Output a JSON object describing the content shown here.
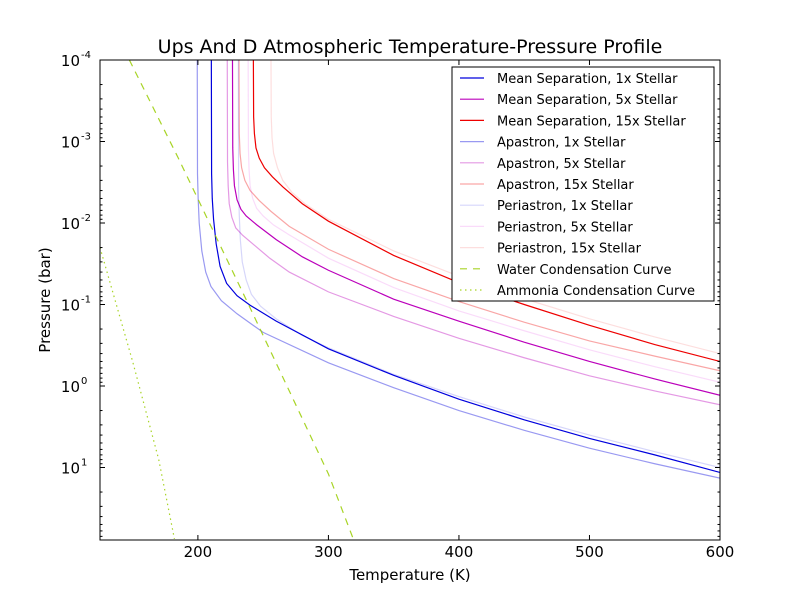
{
  "chart_data": {
    "type": "line",
    "title": "Ups And D Atmospheric Temperature-Pressure Profile",
    "xlabel": "Temperature (K)",
    "ylabel": "Pressure (bar)",
    "xlim": [
      125,
      600
    ],
    "ylim": [
      0.0001,
      75
    ],
    "yscale": "log",
    "y_inverted": true,
    "grid": false,
    "legend_position": "top-right",
    "x_ticks": [
      {
        "value": 200,
        "label": "200"
      },
      {
        "value": 300,
        "label": "300"
      },
      {
        "value": 400,
        "label": "400"
      },
      {
        "value": 500,
        "label": "500"
      },
      {
        "value": 600,
        "label": "600"
      }
    ],
    "y_ticks": [
      {
        "value": 0.0001,
        "base": "10",
        "exp": "-4"
      },
      {
        "value": 0.001,
        "base": "10",
        "exp": "-3"
      },
      {
        "value": 0.01,
        "base": "10",
        "exp": "-2"
      },
      {
        "value": 0.1,
        "base": "10",
        "exp": "-1"
      },
      {
        "value": 1,
        "base": "10",
        "exp": "0"
      },
      {
        "value": 10,
        "base": "10",
        "exp": "1"
      }
    ],
    "series": [
      {
        "name": "Mean Separation, 1x Stellar",
        "color": "#0000dd",
        "opacity": 1.0,
        "dash": "solid",
        "x": [
          210.3,
          210.5,
          211,
          212,
          214,
          217,
          222,
          230,
          240,
          260,
          300,
          350,
          400,
          450,
          500,
          550,
          600
        ],
        "y": [
          0.0001,
          0.0025,
          0.005,
          0.009,
          0.018,
          0.034,
          0.055,
          0.078,
          0.102,
          0.16,
          0.35,
          0.74,
          1.45,
          2.6,
          4.4,
          7.0,
          11.5
        ]
      },
      {
        "name": "Mean Separation, 5x Stellar",
        "color": "#bb00bb",
        "opacity": 1.0,
        "dash": "solid",
        "x": [
          226.5,
          226.7,
          227.2,
          228,
          230,
          233,
          237,
          245,
          260,
          280,
          300,
          350,
          400,
          450,
          500,
          550,
          600
        ],
        "y": [
          0.0001,
          0.0012,
          0.0022,
          0.0035,
          0.0052,
          0.0068,
          0.0082,
          0.0105,
          0.016,
          0.026,
          0.038,
          0.086,
          0.16,
          0.29,
          0.5,
          0.82,
          1.3
        ]
      },
      {
        "name": "Mean Separation, 15x Stellar",
        "color": "#ee0000",
        "opacity": 1.0,
        "dash": "solid",
        "x": [
          242.5,
          242.7,
          243.3,
          244.5,
          247,
          251,
          257,
          265,
          280,
          300,
          350,
          400,
          450,
          500,
          550,
          600
        ],
        "y": [
          0.0001,
          0.0005,
          0.0008,
          0.0012,
          0.0016,
          0.0021,
          0.0027,
          0.0036,
          0.0058,
          0.0095,
          0.025,
          0.054,
          0.1,
          0.18,
          0.31,
          0.5
        ]
      },
      {
        "name": "Apastron, 1x Stellar",
        "color": "#0000dd",
        "opacity": 0.4,
        "dash": "solid",
        "x": [
          199.5,
          199.7,
          200.2,
          201,
          203,
          206,
          210,
          218,
          230,
          250,
          300,
          350,
          400,
          450,
          500,
          550,
          600
        ],
        "y": [
          0.0001,
          0.0025,
          0.005,
          0.01,
          0.022,
          0.04,
          0.06,
          0.09,
          0.13,
          0.22,
          0.52,
          1.05,
          2.0,
          3.5,
          5.8,
          9.0,
          13.5
        ]
      },
      {
        "name": "Apastron, 5x Stellar",
        "color": "#bb00bb",
        "opacity": 0.4,
        "dash": "solid",
        "x": [
          222.5,
          222.7,
          223.2,
          224,
          226,
          229,
          234,
          242,
          255,
          270,
          300,
          350,
          400,
          450,
          500,
          550,
          600
        ],
        "y": [
          0.0001,
          0.0018,
          0.0035,
          0.0058,
          0.0085,
          0.0115,
          0.014,
          0.018,
          0.027,
          0.04,
          0.07,
          0.14,
          0.26,
          0.45,
          0.75,
          1.15,
          1.7
        ]
      },
      {
        "name": "Apastron, 15x Stellar",
        "color": "#ee0000",
        "opacity": 0.35,
        "dash": "solid",
        "x": [
          231.5,
          231.7,
          232.3,
          233.5,
          236,
          240,
          247,
          256,
          270,
          300,
          350,
          400,
          450,
          500,
          550,
          600
        ],
        "y": [
          0.0001,
          0.0008,
          0.0014,
          0.0021,
          0.003,
          0.004,
          0.0053,
          0.0072,
          0.011,
          0.021,
          0.048,
          0.092,
          0.165,
          0.28,
          0.43,
          0.65
        ]
      },
      {
        "name": "Periastron, 1x Stellar",
        "color": "#0000dd",
        "opacity": 0.16,
        "dash": "solid",
        "x": [
          231,
          231.2,
          231.7,
          232.5,
          234,
          237,
          241,
          248,
          260,
          280,
          300,
          350,
          400,
          450,
          500,
          550,
          600
        ],
        "y": [
          0.0001,
          0.004,
          0.008,
          0.016,
          0.03,
          0.05,
          0.075,
          0.105,
          0.15,
          0.24,
          0.34,
          0.72,
          1.35,
          2.4,
          4.0,
          6.4,
          10.0
        ]
      },
      {
        "name": "Periastron, 5x Stellar",
        "color": "#dd00dd",
        "opacity": 0.14,
        "dash": "solid",
        "x": [
          238.5,
          238.7,
          239.2,
          240,
          242,
          245,
          250,
          258,
          270,
          300,
          350,
          400,
          450,
          500,
          550,
          600
        ],
        "y": [
          0.0001,
          0.0012,
          0.0022,
          0.0035,
          0.005,
          0.0066,
          0.0082,
          0.0106,
          0.014,
          0.027,
          0.062,
          0.12,
          0.21,
          0.36,
          0.58,
          0.9
        ]
      },
      {
        "name": "Periastron, 15x Stellar",
        "color": "#ee0000",
        "opacity": 0.13,
        "dash": "solid",
        "x": [
          256,
          256.2,
          256.8,
          258,
          261,
          265,
          272,
          282,
          300,
          350,
          400,
          450,
          500,
          550,
          600
        ],
        "y": [
          0.0001,
          0.0005,
          0.0009,
          0.0014,
          0.0021,
          0.003,
          0.0042,
          0.0058,
          0.009,
          0.022,
          0.045,
          0.085,
          0.15,
          0.25,
          0.4
        ]
      },
      {
        "name": "Water Condensation Curve",
        "color": "#99cc00",
        "opacity": 0.85,
        "dash": "dashed",
        "x": [
          147.5,
          185,
          240,
          300,
          319
        ],
        "y": [
          0.0001,
          0.0016,
          0.11,
          12,
          75
        ]
      },
      {
        "name": "Ammonia Condensation Curve",
        "color": "#99cc00",
        "opacity": 0.85,
        "dash": "dotted",
        "x": [
          125,
          150,
          170,
          182
        ],
        "y": [
          0.02,
          0.5,
          8,
          75
        ]
      }
    ]
  }
}
